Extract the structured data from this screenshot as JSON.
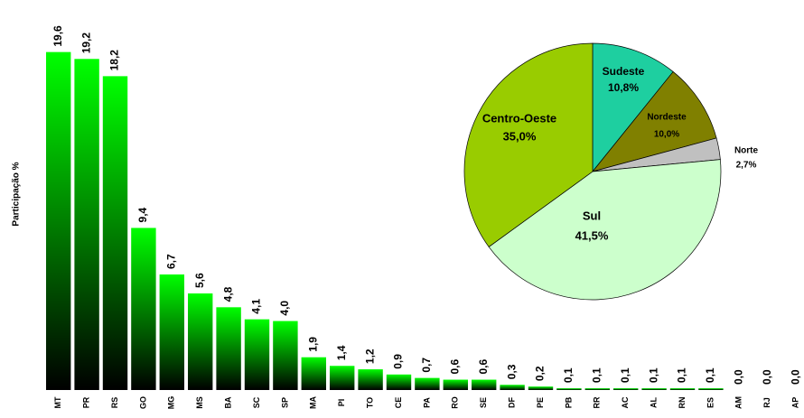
{
  "chart_data": [
    {
      "type": "bar",
      "ylabel": "Participação %",
      "categories": [
        "MT",
        "PR",
        "RS",
        "GO",
        "MG",
        "MS",
        "BA",
        "SC",
        "SP",
        "MA",
        "PI",
        "TO",
        "CE",
        "PA",
        "RO",
        "SE",
        "DF",
        "PE",
        "PB",
        "RR",
        "AC",
        "AL",
        "RN",
        "ES",
        "AM",
        "RJ",
        "AP"
      ],
      "values": [
        19.6,
        19.2,
        18.2,
        9.4,
        6.7,
        5.6,
        4.8,
        4.1,
        4.0,
        1.9,
        1.4,
        1.2,
        0.9,
        0.7,
        0.6,
        0.6,
        0.3,
        0.2,
        0.1,
        0.1,
        0.1,
        0.1,
        0.1,
        0.1,
        0.0,
        0.0,
        0.0
      ],
      "value_labels": [
        "19,6",
        "19,2",
        "18,2",
        "9,4",
        "6,7",
        "5,6",
        "4,8",
        "4,1",
        "4,0",
        "1,9",
        "1,4",
        "1,2",
        "0,9",
        "0,7",
        "0,6",
        "0,6",
        "0,3",
        "0,2",
        "0,1",
        "0,1",
        "0,1",
        "0,1",
        "0,1",
        "0,1",
        "0,0",
        "0,0",
        "0,0"
      ],
      "color": "#00ff00",
      "ylim": [
        0,
        20
      ]
    },
    {
      "type": "pie",
      "categories": [
        "Sudeste",
        "Nordeste",
        "Norte",
        "Sul",
        "Centro-Oeste"
      ],
      "values": [
        10.8,
        10.0,
        2.7,
        41.5,
        35.0
      ],
      "value_labels": [
        "10,8%",
        "10,0%",
        "2,7%",
        "41,5%",
        "35,0%"
      ],
      "colors": [
        "#1ecfa0",
        "#808000",
        "#c0c0c0",
        "#ccffcc",
        "#99cc00"
      ]
    }
  ]
}
